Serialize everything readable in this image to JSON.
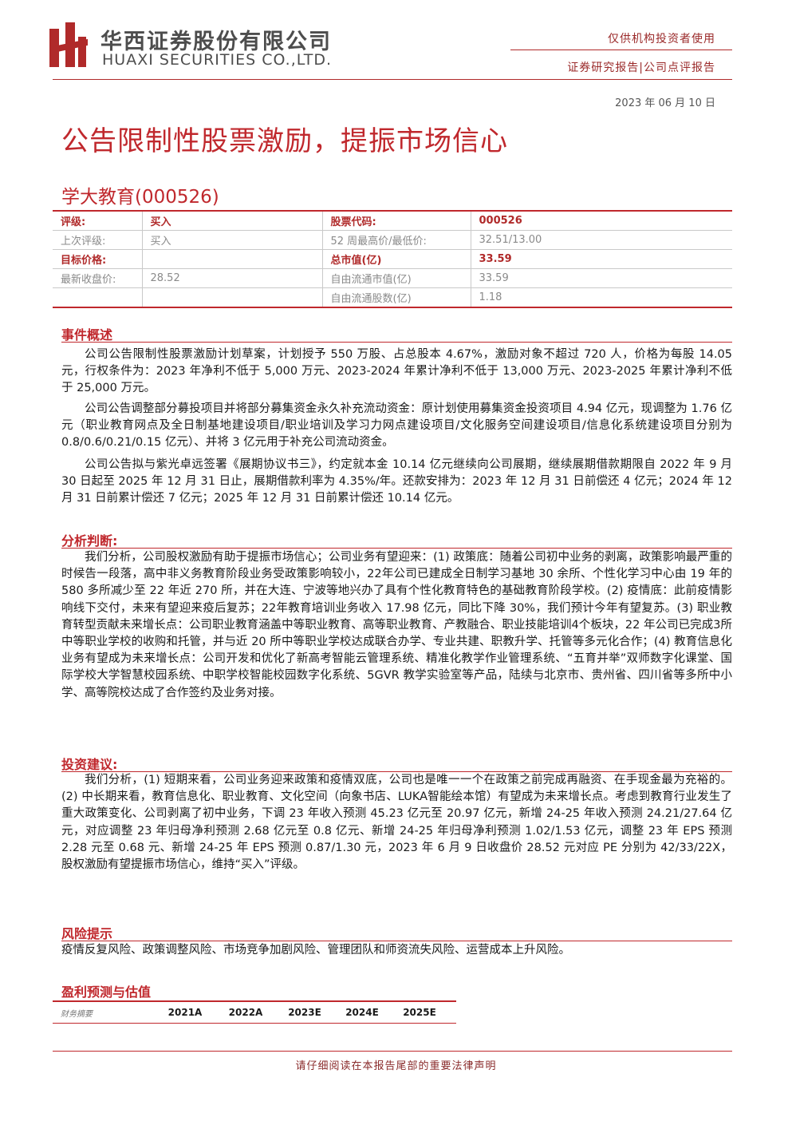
{
  "header": {
    "company_cn": "华西证券股份有限公司",
    "company_en": "HUAXI SECURITIES CO.,LTD.",
    "audience": "仅供机构投资者使用",
    "report_type": "证券研究报告|公司点评报告",
    "date": "2023 年 06 月 10 日",
    "logo_color": "#b02a2a"
  },
  "title": "公告限制性股票激励，提振市场信心",
  "stock": "学大教育(000526)",
  "info_table": [
    {
      "k1": "评级:",
      "v1": "买入",
      "k2": "股票代码:",
      "v2": "000526",
      "style": "bold"
    },
    {
      "k1": "上次评级:",
      "v1": "买入",
      "k2": "52 周最高价/最低价:",
      "v2": "32.51/13.00",
      "style": "light"
    },
    {
      "k1": "目标价格:",
      "v1": "",
      "k2": "总市值(亿)",
      "v2": "33.59",
      "style": "bold"
    },
    {
      "k1": "最新收盘价:",
      "v1": "28.52",
      "k2": "自由流通市值(亿)",
      "v2": "33.59",
      "style": "light"
    },
    {
      "k1": "",
      "v1": "",
      "k2": "自由流通股数(亿)",
      "v2": "1.18",
      "style": "light"
    }
  ],
  "sections": {
    "event": {
      "heading": "事件概述",
      "paras": [
        "公司公告限制性股票激励计划草案，计划授予 550 万股、占总股本 4.67%，激励对象不超过 720 人，价格为每股 14.05 元，行权条件为：2023 年净利不低于 5,000 万元、2023-2024 年累计净利不低于 13,000 万元、2023-2025 年累计净利不低于 25,000 万元。",
        "公司公告调整部分募投项目并将部分募集资金永久补充流动资金：原计划使用募集资金投资项目 4.94 亿元，现调整为 1.76 亿元（职业教育网点及全日制基地建设项目/职业培训及学习力网点建设项目/文化服务空间建设项目/信息化系统建设项目分别为 0.8/0.6/0.21/0.15 亿元）、并将 3 亿元用于补充公司流动资金。",
        "公司公告拟与紫光卓远签署《展期协议书三》，约定就本金 10.14 亿元继续向公司展期，继续展期借款期限自 2022 年 9 月 30 日起至 2025 年 12 月 31 日止，展期借款利率为 4.35%/年。还款安排为：2023 年 12 月 31 日前偿还 4 亿元；2024 年 12 月 31 日前累计偿还 7 亿元；2025 年 12 月 31 日前累计偿还 10.14 亿元。"
      ]
    },
    "analysis": {
      "heading": "分析判断:",
      "paras": [
        "我们分析，公司股权激励有助于提振市场信心；公司业务有望迎来：(1) 政策底：随着公司初中业务的剥离，政策影响最严重的时候告一段落，高中非义务教育阶段业务受政策影响较小，22年公司已建成全日制学习基地 30 余所、个性化学习中心由 19 年的 580 多所减少至 22 年近 270 所，并在大连、宁波等地兴办了具有个性化教育特色的基础教育阶段学校。(2) 疫情底：此前疫情影响线下交付，未来有望迎来疫后复苏；22年教育培训业务收入 17.98 亿元，同比下降 30%，我们预计今年有望复苏。(3) 职业教育转型贡献未来增长点：公司职业教育涵盖中等职业教育、高等职业教育、产教融合、职业技能培训4个板块，22 年公司已完成3所中等职业学校的收购和托管，并与近 20 所中等职业学校达成联合办学、专业共建、职教升学、托管等多元化合作；(4) 教育信息化业务有望成为未来增长点：公司开发和优化了新高考智能云管理系统、精准化教学作业管理系统、“五育并举”双师数字化课堂、国际学校大学智慧校园系统、中职学校智能校园数字化系统、5GVR 教学实验室等产品，陆续与北京市、贵州省、四川省等多所中小学、高等院校达成了合作签约及业务对接。"
      ]
    },
    "advice": {
      "heading": "投资建议:",
      "paras": [
        "我们分析，(1) 短期来看，公司业务迎来政策和疫情双底，公司也是唯一一个在政策之前完成再融资、在手现金最为充裕的。(2) 中长期来看，教育信息化、职业教育、文化空间（向象书店、LUKA智能绘本馆）有望成为未来增长点。考虑到教育行业发生了重大政策变化、公司剥离了初中业务，下调 23 年收入预测 45.23 亿元至 20.97 亿元，新增 24-25 年收入预测 24.21/27.64 亿元，对应调整 23 年归母净利预测 2.68 亿元至 0.8 亿元、新增 24-25 年归母净利预测 1.02/1.53 亿元，调整 23 年 EPS 预测 2.28 元至 0.68 元、新增 24-25 年 EPS 预测 0.87/1.30 元，2023 年 6 月 9 日收盘价 28.52 元对应 PE 分别为 42/33/22X，股权激励有望提振市场信心，维持“买入”评级。"
      ]
    },
    "risk": {
      "heading": "风险提示",
      "paras": [
        "疫情反复风险、政策调整风险、市场竞争加剧风险、管理团队和师资流失风险、运营成本上升风险。"
      ]
    }
  },
  "forecast": {
    "heading": "盈利预测与估值",
    "row_label": "财务摘要",
    "years": [
      "2021A",
      "2022A",
      "2023E",
      "2024E",
      "2025E"
    ]
  },
  "footer": "请仔细阅读在本报告尾部的重要法律声明",
  "colors": {
    "accent": "#c0282d"
  }
}
